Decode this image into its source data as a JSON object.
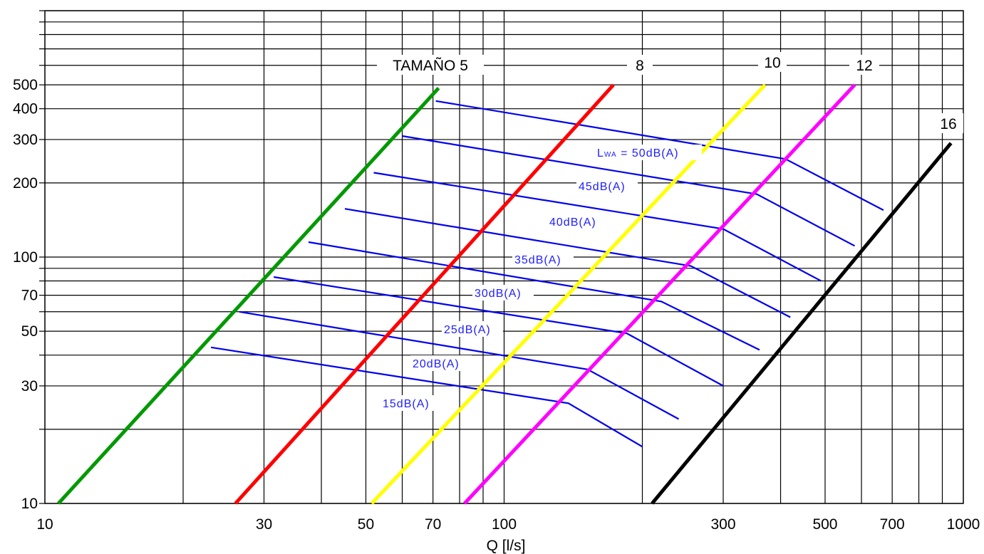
{
  "chart_data": {
    "type": "line",
    "x_scale": "log",
    "y_scale": "log",
    "xlim": [
      10,
      1000
    ],
    "ylim": [
      10,
      1000
    ],
    "xlabel": "Q [l/s]",
    "ylabel": "",
    "grid": true,
    "x_ticks": [
      10,
      30,
      50,
      70,
      100,
      300,
      500,
      700,
      1000
    ],
    "x_tick_labels": [
      "10",
      "30",
      "50",
      "70",
      "100",
      "300",
      "500",
      "700",
      "1000"
    ],
    "y_ticks": [
      10,
      30,
      50,
      70,
      100,
      200,
      300,
      400,
      500
    ],
    "y_tick_labels": [
      "10",
      "30",
      "50",
      "70",
      "100",
      "200",
      "300",
      "400",
      "500"
    ],
    "size_series": [
      {
        "name": "TAMAÑO 5",
        "color": "#009900",
        "points": [
          [
            10.7,
            10
          ],
          [
            72,
            485
          ]
        ]
      },
      {
        "name": "8",
        "color": "#ff0000",
        "points": [
          [
            26,
            10
          ],
          [
            173,
            500
          ]
        ]
      },
      {
        "name": "10",
        "color": "#ffff00",
        "points": [
          [
            51.5,
            10
          ],
          [
            370,
            500
          ]
        ]
      },
      {
        "name": "12",
        "color": "#ff00ff",
        "points": [
          [
            82,
            10
          ],
          [
            580,
            500
          ]
        ]
      },
      {
        "name": "16",
        "color": "#000000",
        "points": [
          [
            210,
            10
          ],
          [
            940,
            290
          ]
        ]
      }
    ],
    "noise_series": [
      {
        "name": "15dB(A)",
        "color": "#0000ee",
        "points": [
          [
            23,
            43
          ],
          [
            138,
            25.5
          ],
          [
            200,
            17
          ]
        ]
      },
      {
        "name": "20dB(A)",
        "color": "#0000ee",
        "points": [
          [
            26.5,
            60
          ],
          [
            152,
            35
          ],
          [
            240,
            22
          ]
        ]
      },
      {
        "name": "25dB(A)",
        "color": "#0000ee",
        "points": [
          [
            31.5,
            83
          ],
          [
            185,
            49
          ],
          [
            300,
            30
          ]
        ]
      },
      {
        "name": "30dB(A)",
        "color": "#0000ee",
        "points": [
          [
            37.5,
            115
          ],
          [
            220,
            66
          ],
          [
            360,
            42
          ]
        ]
      },
      {
        "name": "35dB(A)",
        "color": "#0000ee",
        "points": [
          [
            45,
            157
          ],
          [
            255,
            92
          ],
          [
            420,
            57
          ]
        ]
      },
      {
        "name": "40dB(A)",
        "color": "#0000ee",
        "points": [
          [
            52,
            220
          ],
          [
            300,
            130
          ],
          [
            490,
            80
          ]
        ]
      },
      {
        "name": "45dB(A)",
        "color": "#0000ee",
        "points": [
          [
            60,
            310
          ],
          [
            355,
            180
          ],
          [
            580,
            111
          ]
        ]
      },
      {
        "name": "50dB(A)",
        "color": "#0000ee",
        "points": [
          [
            71,
            430
          ],
          [
            410,
            250
          ],
          [
            670,
            155
          ]
        ]
      }
    ],
    "size_labels": [
      "TAMAÑO 5",
      "8",
      "10",
      "12",
      "16"
    ],
    "noise_labels": [
      {
        "prefix": "L",
        "sub": "WA",
        "text": " = 50dB(A)"
      },
      {
        "prefix": "",
        "sub": "",
        "text": "45dB(A)"
      },
      {
        "prefix": "",
        "sub": "",
        "text": "40dB(A)"
      },
      {
        "prefix": "",
        "sub": "",
        "text": "35dB(A)"
      },
      {
        "prefix": "",
        "sub": "",
        "text": "30dB(A)"
      },
      {
        "prefix": "",
        "sub": "",
        "text": "25dB(A)"
      },
      {
        "prefix": "",
        "sub": "",
        "text": "20dB(A)"
      },
      {
        "prefix": "",
        "sub": "",
        "text": "15dB(A)"
      }
    ]
  }
}
